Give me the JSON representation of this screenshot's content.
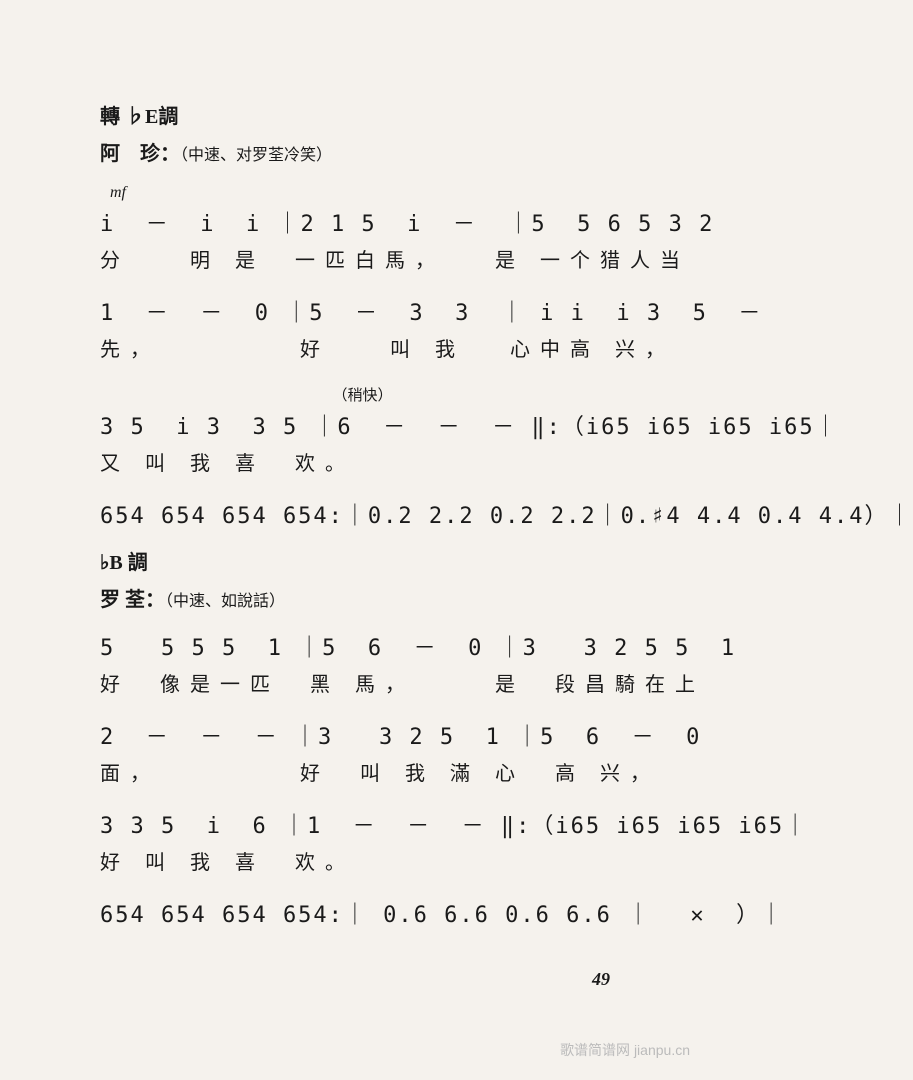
{
  "keySig1": "轉 ♭E調",
  "char1": "阿　珍：",
  "stageDir1": "（中速、对罗荃冷笑）",
  "dynamic": "mf",
  "line1_notes": "i  －  i  i ｜2 1 5  i  －  ｜5  5 6 5 3 2",
  "line1_lyrics": "分　　明 是　一匹白馬，　　是 一个猎人当",
  "line2_notes": "1  －  －  0 ｜5  －  3  3  ｜ i i  i 3  5  －",
  "line2_lyrics": "先，　　　　　好　　叫 我　 心中高 兴，",
  "tempo1": "　　　　　　　　　　　　　　　　（稍快）",
  "line3_notes": "3 5  i 3  3 5 ｜6  －  －  － ‖:（i65 i65 i65 i65｜",
  "line3_lyrics": "又 叫 我 喜　欢。",
  "line4_notes": "654 654 654 654:｜0.2 2.2 0.2 2.2｜0.♯4 4.4 0.4 4.4）｜",
  "keySig2": "♭B 調",
  "char2": "罗 荃：",
  "stageDir2": "（中速、如說話）",
  "line5_notes": "5   5 5 5  1 ｜5  6  －  0 ｜3   3 2 5 5  1",
  "line5_lyrics": "好　像是一匹　黑 馬，　　　是　段昌騎在上",
  "line6_notes": "2  －  －  － ｜3   3 2 5  1 ｜5  6  －  0",
  "line6_lyrics": "面，　　　　　好　叫 我 滿 心　高 兴，",
  "line7_notes": "3 3 5  i  6 ｜1  －  －  － ‖:（i65 i65 i65 i65｜",
  "line7_lyrics": "好 叫 我 喜　欢。",
  "line8_notes": "654 654 654 654:｜ 0.6 6.6 0.6 6.6 ｜　 ✕  ）｜",
  "pageNum": "49",
  "watermark": "歌谱简谱网 jianpu.cn"
}
